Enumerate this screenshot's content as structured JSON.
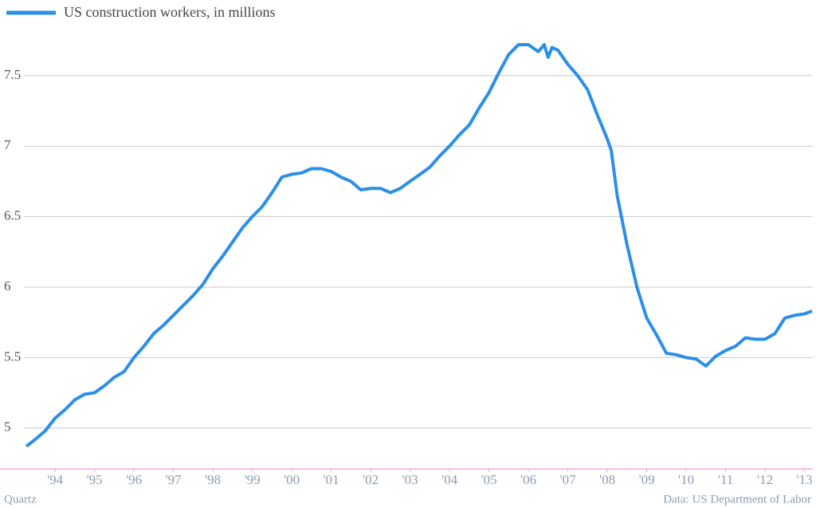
{
  "chart_data": {
    "type": "line",
    "source": "Quartz",
    "note": "Data: US Department of Labor",
    "x": [
      1993.27,
      1993.5,
      1993.75,
      1994.0,
      1994.25,
      1994.5,
      1994.75,
      1995.0,
      1995.25,
      1995.5,
      1995.75,
      1996.0,
      1996.25,
      1996.5,
      1996.75,
      1997.0,
      1997.25,
      1997.5,
      1997.75,
      1998.0,
      1998.25,
      1998.5,
      1998.75,
      1999.0,
      1999.25,
      1999.5,
      1999.75,
      2000.0,
      2000.25,
      2000.5,
      2000.75,
      2001.0,
      2001.25,
      2001.5,
      2001.75,
      2002.0,
      2002.25,
      2002.5,
      2002.75,
      2003.0,
      2003.25,
      2003.5,
      2003.75,
      2004.0,
      2004.25,
      2004.5,
      2004.75,
      2005.0,
      2005.25,
      2005.5,
      2005.75,
      2006.0,
      2006.25,
      2006.4,
      2006.5,
      2006.6,
      2006.75,
      2007.0,
      2007.25,
      2007.5,
      2007.75,
      2008.0,
      2008.1,
      2008.25,
      2008.5,
      2008.75,
      2009.0,
      2009.25,
      2009.5,
      2009.75,
      2010.0,
      2010.25,
      2010.5,
      2010.75,
      2011.0,
      2011.25,
      2011.5,
      2011.75,
      2012.0,
      2012.25,
      2012.5,
      2012.75,
      2013.0,
      2013.19
    ],
    "series": [
      {
        "name": "US construction workers, in millions",
        "color": "#2b8fe8",
        "values": [
          4.87,
          4.92,
          4.98,
          5.07,
          5.13,
          5.2,
          5.24,
          5.25,
          5.3,
          5.36,
          5.4,
          5.5,
          5.58,
          5.67,
          5.73,
          5.8,
          5.87,
          5.94,
          6.02,
          6.13,
          6.22,
          6.32,
          6.42,
          6.5,
          6.57,
          6.67,
          6.78,
          6.8,
          6.81,
          6.84,
          6.84,
          6.82,
          6.78,
          6.75,
          6.69,
          6.7,
          6.7,
          6.67,
          6.7,
          6.75,
          6.8,
          6.85,
          6.93,
          7.0,
          7.08,
          7.15,
          7.27,
          7.38,
          7.52,
          7.65,
          7.72,
          7.72,
          7.67,
          7.72,
          7.63,
          7.7,
          7.68,
          7.58,
          7.5,
          7.4,
          7.22,
          7.05,
          6.97,
          6.65,
          6.3,
          6.0,
          5.78,
          5.66,
          5.53,
          5.52,
          5.5,
          5.49,
          5.44,
          5.51,
          5.55,
          5.58,
          5.64,
          5.63,
          5.63,
          5.67,
          5.78,
          5.8,
          5.81,
          5.83
        ]
      }
    ],
    "xlim": [
      1993.27,
      2013.19
    ],
    "xticks": [
      {
        "value": 1994,
        "label": "'94"
      },
      {
        "value": 1995,
        "label": "'95"
      },
      {
        "value": 1996,
        "label": "'96"
      },
      {
        "value": 1997,
        "label": "'97"
      },
      {
        "value": 1998,
        "label": "'98"
      },
      {
        "value": 1999,
        "label": "'99"
      },
      {
        "value": 2000,
        "label": "'00"
      },
      {
        "value": 2001,
        "label": "'01"
      },
      {
        "value": 2002,
        "label": "'02"
      },
      {
        "value": 2003,
        "label": "'03"
      },
      {
        "value": 2004,
        "label": "'04"
      },
      {
        "value": 2005,
        "label": "'05"
      },
      {
        "value": 2006,
        "label": "'06"
      },
      {
        "value": 2007,
        "label": "'07"
      },
      {
        "value": 2008,
        "label": "'08"
      },
      {
        "value": 2009,
        "label": "'09"
      },
      {
        "value": 2010,
        "label": "'10"
      },
      {
        "value": 2011,
        "label": "'11"
      },
      {
        "value": 2012,
        "label": "'12"
      },
      {
        "value": 2013,
        "label": "'13"
      }
    ],
    "ylim": [
      4.71,
      7.98
    ],
    "yticks": [
      5,
      5.5,
      6,
      6.5,
      7,
      7.5
    ],
    "grid": true
  }
}
